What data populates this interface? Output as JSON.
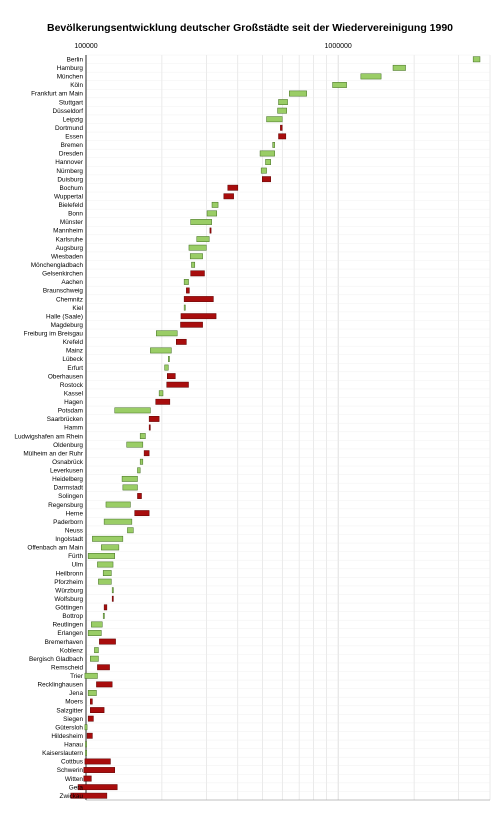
{
  "chart_data": {
    "type": "bar",
    "title": "Bevölkerungsentwicklung deutscher Großstädte seit der Wiedervereinigung 1990",
    "xscale": "log",
    "xlim": [
      100000,
      4000000
    ],
    "x_ticks": [
      "100000",
      "1000000"
    ],
    "grid": true,
    "legend": "none",
    "colors": {
      "increase": "#9acd66",
      "increase_border": "#3f6b1f",
      "decrease": "#a80d0d",
      "decrease_border": "#5c0000",
      "grid": "#d6d6d6"
    },
    "categories": [
      "Berlin",
      "Hamburg",
      "München",
      "Köln",
      "Frankfurt am Main",
      "Stuttgart",
      "Düsseldorf",
      "Leipzig",
      "Dortmund",
      "Essen",
      "Bremen",
      "Dresden",
      "Hannover",
      "Nürnberg",
      "Duisburg",
      "Bochum",
      "Wuppertal",
      "Bielefeld",
      "Bonn",
      "Münster",
      "Mannheim",
      "Karlsruhe",
      "Augsburg",
      "Wiesbaden",
      "Mönchengladbach",
      "Gelsenkirchen",
      "Aachen",
      "Braunschweig",
      "Chemnitz",
      "Kiel",
      "Halle (Saale)",
      "Magdeburg",
      "Freiburg im Breisgau",
      "Krefeld",
      "Mainz",
      "Lübeck",
      "Erfurt",
      "Oberhausen",
      "Rostock",
      "Kassel",
      "Hagen",
      "Potsdam",
      "Saarbrücken",
      "Hamm",
      "Ludwigshafen am Rhein",
      "Oldenburg",
      "Mülheim an der Ruhr",
      "Osnabrück",
      "Leverkusen",
      "Heidelberg",
      "Darmstadt",
      "Solingen",
      "Regensburg",
      "Herne",
      "Paderborn",
      "Neuss",
      "Ingolstadt",
      "Offenbach am Main",
      "Fürth",
      "Ulm",
      "Heilbronn",
      "Pforzheim",
      "Würzburg",
      "Wolfsburg",
      "Göttingen",
      "Bottrop",
      "Reutlingen",
      "Erlangen",
      "Bremerhaven",
      "Koblenz",
      "Bergisch Gladbach",
      "Remscheid",
      "Trier",
      "Recklinghausen",
      "Jena",
      "Moers",
      "Salzgitter",
      "Siegen",
      "Gütersloh",
      "Hildesheim",
      "Hanau",
      "Kaiserslautern",
      "Cottbus",
      "Schwerin",
      "Witten",
      "Gera",
      "Zwickau"
    ],
    "start": [
      3430000,
      1650000,
      1230000,
      950000,
      640000,
      580000,
      575000,
      520000,
      600000,
      620000,
      550000,
      490000,
      515000,
      495000,
      540000,
      400000,
      385000,
      316000,
      302000,
      260000,
      312000,
      275000,
      256000,
      259000,
      262000,
      295000,
      245000,
      257000,
      320000,
      245000,
      328000,
      290000,
      190000,
      250000,
      180000,
      212000,
      205000,
      226000,
      255000,
      195000,
      215000,
      130000,
      195000,
      179000,
      164000,
      145000,
      178000,
      164000,
      160000,
      139000,
      140000,
      166000,
      120000,
      178000,
      118000,
      146000,
      106000,
      115000,
      102000,
      111000,
      117000,
      112000,
      127000,
      128000,
      121000,
      117000,
      105000,
      102000,
      131000,
      108000,
      104000,
      124000,
      99000,
      127000,
      102000,
      106000,
      118000,
      107000,
      99000,
      106000,
      99500,
      99500,
      125000,
      130000,
      105000,
      133000,
      121000
    ],
    "end": [
      3650000,
      1850000,
      1480000,
      1080000,
      750000,
      630000,
      625000,
      600000,
      590000,
      580000,
      560000,
      560000,
      540000,
      520000,
      500000,
      365000,
      352000,
      334000,
      330000,
      315000,
      310000,
      308000,
      300000,
      290000,
      270000,
      260000,
      255000,
      250000,
      245000,
      247000,
      238000,
      237000,
      230000,
      228000,
      218000,
      214000,
      212000,
      210000,
      209000,
      202000,
      189000,
      180000,
      178000,
      178000,
      172000,
      168000,
      170000,
      168000,
      164000,
      160000,
      160000,
      160000,
      150000,
      156000,
      152000,
      154000,
      140000,
      135000,
      130000,
      128000,
      126000,
      126000,
      128000,
      127000,
      118000,
      117000,
      116000,
      115000,
      113000,
      112000,
      112000,
      111000,
      111000,
      110000,
      110000,
      104000,
      104000,
      102000,
      101000,
      101000,
      100000,
      100000,
      99000,
      98000,
      98000,
      93000,
      87000
    ]
  }
}
